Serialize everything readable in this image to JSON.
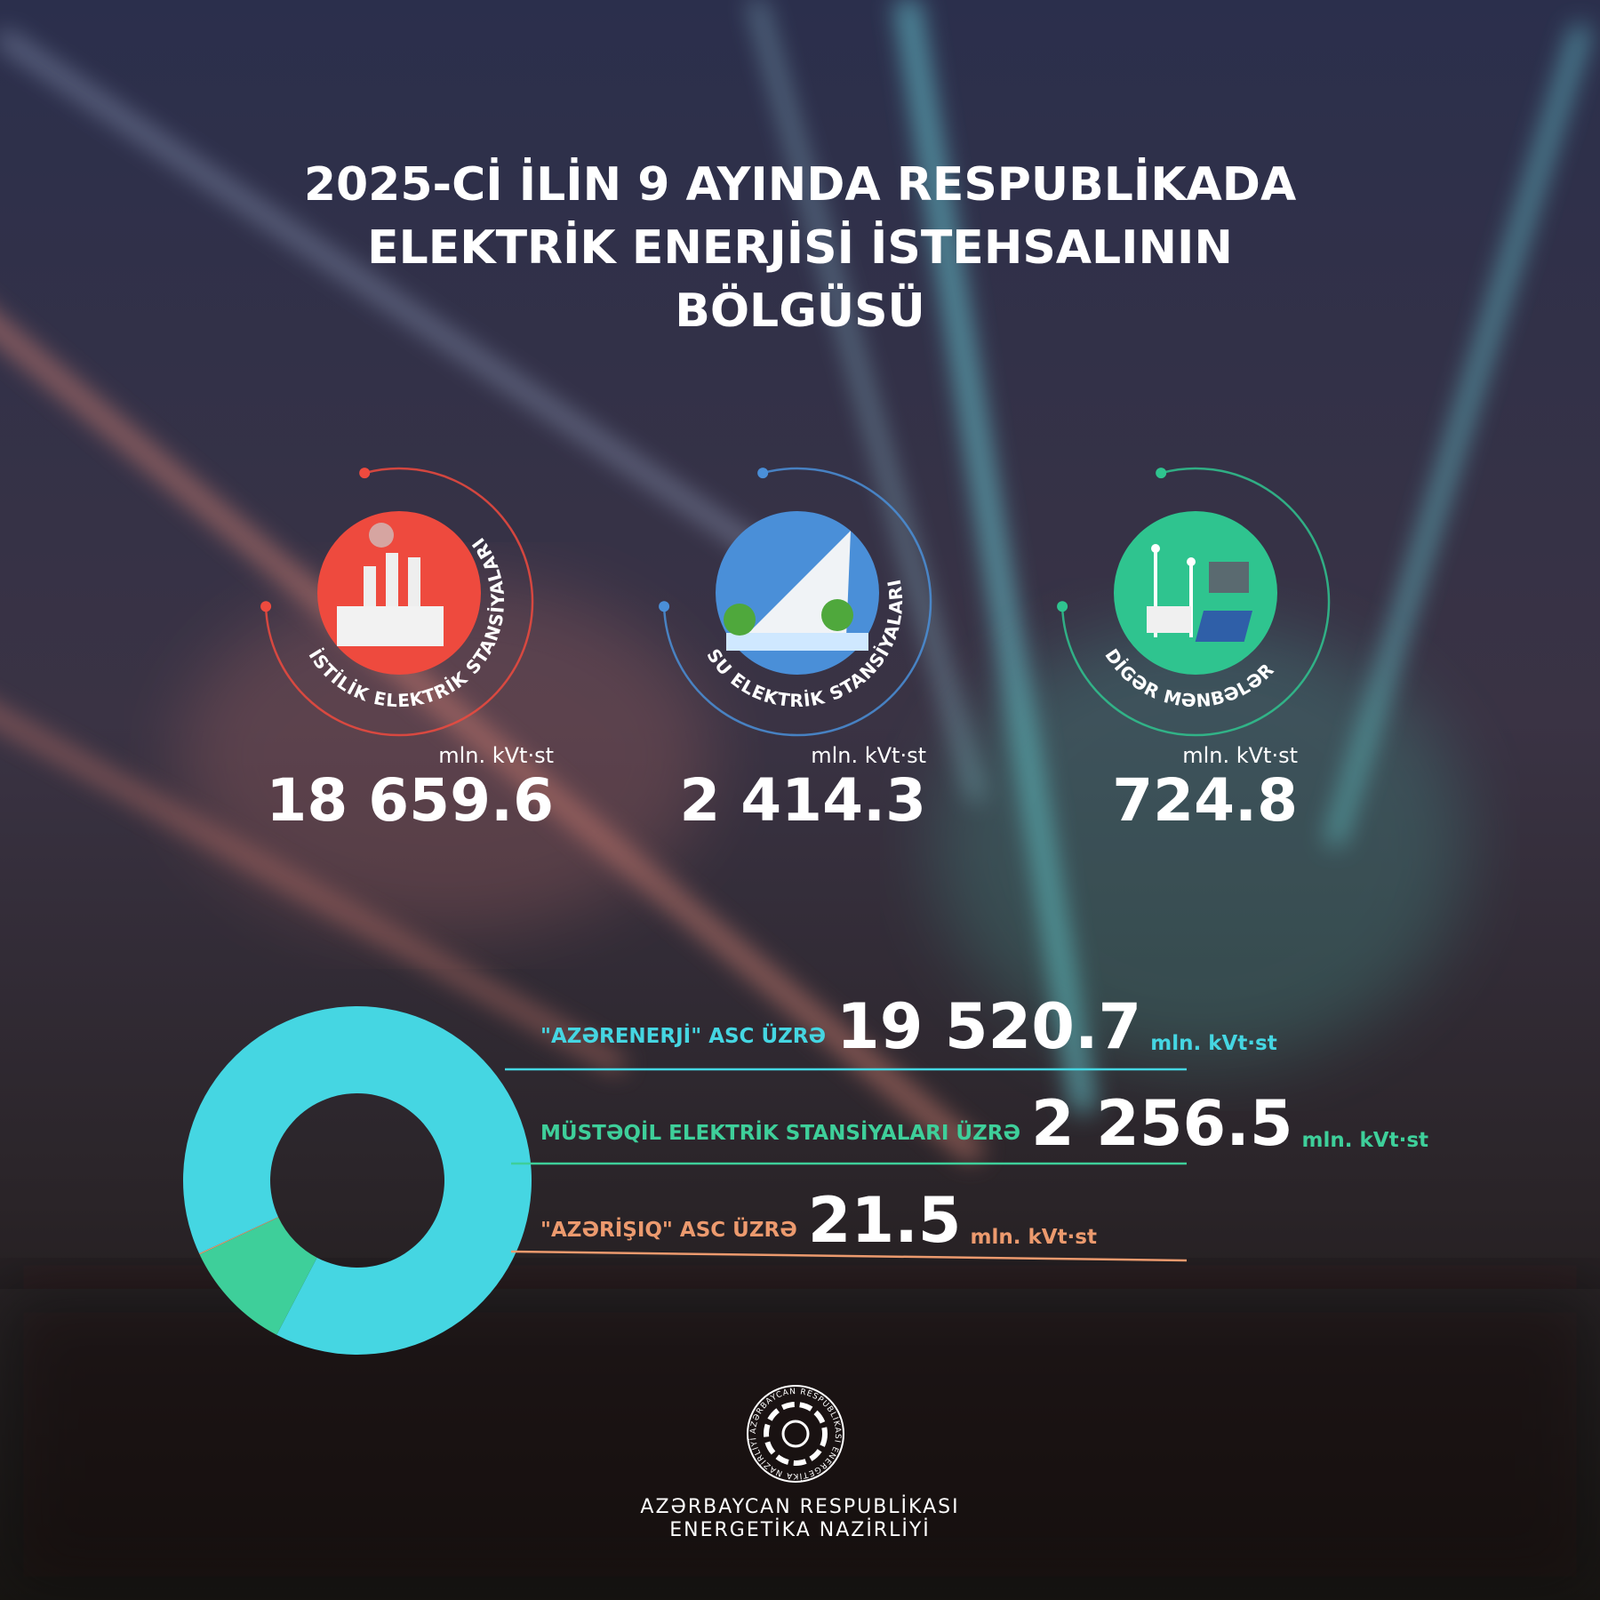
{
  "title_lines": [
    "2025-Cİ İLİN 9 AYINDA RESPUBLİKADA",
    "ELEKTRİK ENERJİSİ İSTEHSALININ",
    "BÖLGÜSÜ"
  ],
  "unit": "mln. kVt·st",
  "stations": [
    {
      "label": "İSTİLİK ELEKTRİK STANSİYALARI",
      "value": "18 659.6",
      "color": "#ee4a3e"
    },
    {
      "label": "SU ELEKTRİK STANSİYALARI",
      "value": "2 414.3",
      "color": "#4a8fd8"
    },
    {
      "label": "DİGƏR MƏNBƏLƏR",
      "value": "724.8",
      "color": "#2fc48f"
    }
  ],
  "chart_data": {
    "type": "donut",
    "categories": [
      "\"AZƏRENERJİ\" ASC ÜZRƏ",
      "MÜSTƏQİL ELEKTRİK STANSİYALARI ÜZRƏ",
      "\"AZƏRİŞIQ\" ASC ÜZRƏ"
    ],
    "values": [
      19520.7,
      2256.5,
      21.5
    ],
    "value_labels": [
      "19 520.7",
      "2 256.5",
      "21.5"
    ],
    "colors": [
      "#45d6e2",
      "#3ecf9a",
      "#ec9a6e"
    ]
  },
  "logo_text": "AZƏRBAYCAN RESPUBLİKASI ENERGETİKA NAZİRLİYİ",
  "footer_lines": [
    "AZƏRBAYCAN RESPUBLİKASI",
    "ENERGETİKA NAZİRLİYİ"
  ]
}
